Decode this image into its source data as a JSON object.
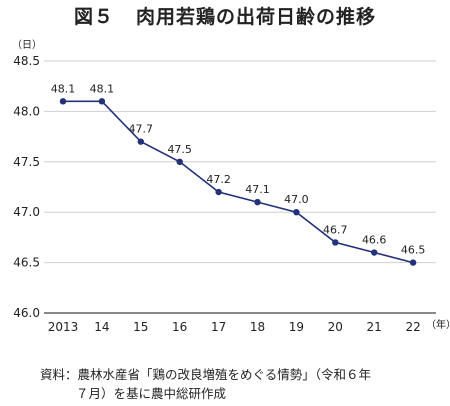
{
  "title": {
    "figure_no": "図５",
    "text": "肉用若鶏の出荷日齢の推移"
  },
  "source": {
    "line1": "資料：農林水産省「鶏の改良増殖をめぐる情勢」（令和６年",
    "line2": "７月）を基に農中総研作成"
  },
  "chart_data": {
    "type": "line",
    "title": "肉用若鶏の出荷日齢の推移",
    "ylabel_unit": "（日）",
    "xlabel_unit": "（年）",
    "categories": [
      "2013",
      "14",
      "15",
      "16",
      "17",
      "18",
      "19",
      "20",
      "21",
      "22"
    ],
    "values": [
      48.1,
      48.1,
      47.7,
      47.5,
      47.2,
      47.1,
      47.0,
      46.7,
      46.6,
      46.5
    ],
    "data_labels": [
      "48.1",
      "48.1",
      "47.7",
      "47.5",
      "47.2",
      "47.1",
      "47.0",
      "46.7",
      "46.6",
      "46.5"
    ],
    "yticks": [
      "46.0",
      "46.5",
      "47.0",
      "47.5",
      "48.0",
      "48.5"
    ],
    "ylim": [
      46.0,
      48.5
    ],
    "grid": true,
    "color": "#23307a"
  }
}
